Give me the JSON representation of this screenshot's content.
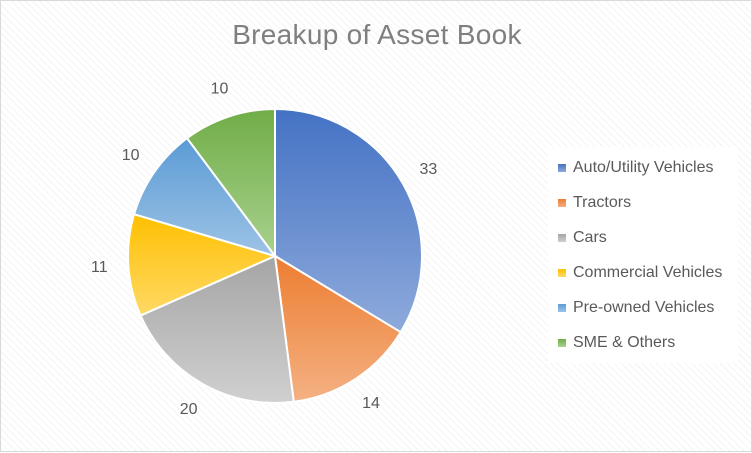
{
  "chart_data": {
    "type": "pie",
    "title": "Breakup of Asset Book",
    "categories": [
      "Auto/Utility Vehicles",
      "Tractors",
      "Cars",
      "Commercial Vehicles",
      "Pre-owned Vehicles",
      "SME & Others"
    ],
    "values": [
      33,
      14,
      20,
      11,
      10,
      10
    ],
    "colors": [
      [
        "#4472c4",
        "#8eaadb"
      ],
      [
        "#ed7d31",
        "#f4b183"
      ],
      [
        "#a5a5a5",
        "#d0d0d0"
      ],
      [
        "#ffc000",
        "#ffd966"
      ],
      [
        "#5b9bd5",
        "#9dc3e6"
      ],
      [
        "#70ad47",
        "#a9d18e"
      ]
    ],
    "legend_position": "right",
    "data_labels": "outside end"
  }
}
